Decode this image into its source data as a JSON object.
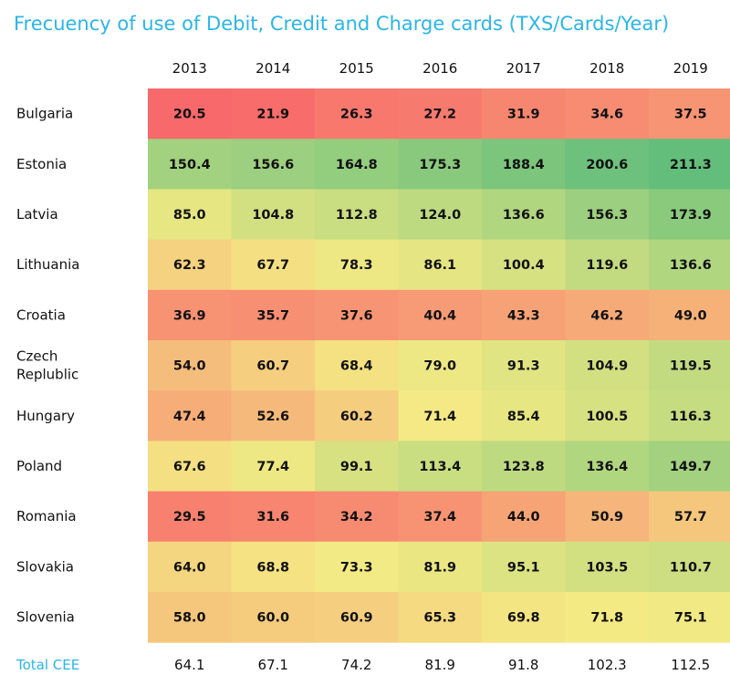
{
  "chart_data": {
    "type": "heatmap",
    "title": "Frecuency of use of Debit, Credit and Charge cards (TXS/Cards/Year)",
    "columns": [
      "2013",
      "2014",
      "2015",
      "2016",
      "2017",
      "2018",
      "2019"
    ],
    "rows": [
      {
        "label": [
          "Bulgaria"
        ],
        "values": [
          20.5,
          21.9,
          26.3,
          27.2,
          31.9,
          34.6,
          37.5
        ]
      },
      {
        "label": [
          "Estonia"
        ],
        "values": [
          150.4,
          156.6,
          164.8,
          175.3,
          188.4,
          200.6,
          211.3
        ]
      },
      {
        "label": [
          "Latvia"
        ],
        "values": [
          85.0,
          104.8,
          112.8,
          124.0,
          136.6,
          156.3,
          173.9
        ]
      },
      {
        "label": [
          "Lithuania"
        ],
        "values": [
          62.3,
          67.7,
          78.3,
          86.1,
          100.4,
          119.6,
          136.6
        ]
      },
      {
        "label": [
          "Croatia"
        ],
        "values": [
          36.9,
          35.7,
          37.6,
          40.4,
          43.3,
          46.2,
          49.0
        ]
      },
      {
        "label": [
          "Czech",
          "Replublic"
        ],
        "values": [
          54.0,
          60.7,
          68.4,
          79.0,
          91.3,
          104.9,
          119.5
        ]
      },
      {
        "label": [
          "Hungary"
        ],
        "values": [
          47.4,
          52.6,
          60.2,
          71.4,
          85.4,
          100.5,
          116.3
        ]
      },
      {
        "label": [
          "Poland"
        ],
        "values": [
          67.6,
          77.4,
          99.1,
          113.4,
          123.8,
          136.4,
          149.7
        ]
      },
      {
        "label": [
          "Romania"
        ],
        "values": [
          29.5,
          31.6,
          34.2,
          37.4,
          44.0,
          50.9,
          57.7
        ]
      },
      {
        "label": [
          "Slovakia"
        ],
        "values": [
          64.0,
          68.8,
          73.3,
          81.9,
          95.1,
          103.5,
          110.7
        ]
      },
      {
        "label": [
          "Slovenia"
        ],
        "values": [
          58.0,
          60.0,
          60.9,
          65.3,
          69.8,
          71.8,
          75.1
        ]
      }
    ],
    "total": {
      "label": "Total CEE",
      "values": [
        64.1,
        67.1,
        74.2,
        81.9,
        91.8,
        102.3,
        112.5
      ]
    },
    "color_scale": {
      "low": "#f8696b",
      "mid": "#f4ea84",
      "high": "#63be7b"
    }
  }
}
